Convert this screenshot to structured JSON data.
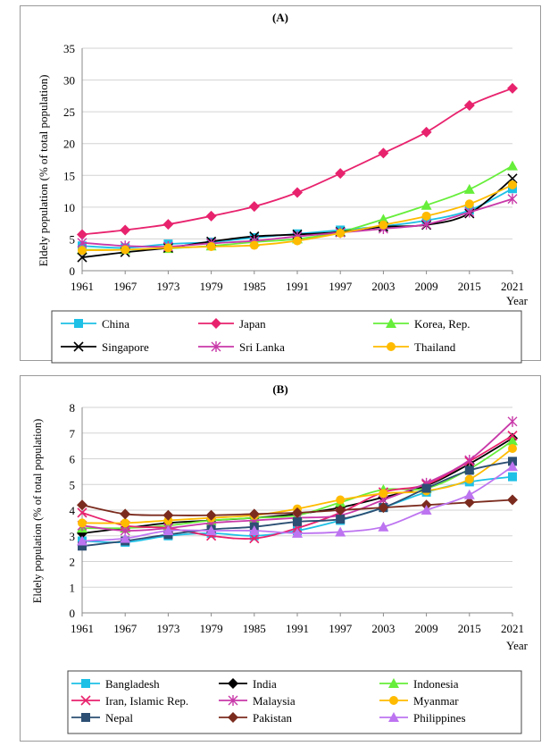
{
  "chart_data": [
    {
      "type": "line",
      "title": "(A)",
      "xlabel": "Year",
      "ylabel": "Eldely population (% of total population)",
      "categories": [
        "1961",
        "1967",
        "1973",
        "1979",
        "1985",
        "1991",
        "1997",
        "2003",
        "2009",
        "2015",
        "2021"
      ],
      "ylim": [
        0,
        35
      ],
      "yticks": [
        0,
        5,
        10,
        15,
        20,
        25,
        30,
        35
      ],
      "grid": true,
      "legend_position": "bottom",
      "series": [
        {
          "name": "China",
          "color": "#1ec0e6",
          "marker": "square",
          "values": [
            3.9,
            3.6,
            4.2,
            4.5,
            5.2,
            5.8,
            6.4,
            7.0,
            7.9,
            9.5,
            12.9
          ]
        },
        {
          "name": "Japan",
          "color": "#e8236e",
          "marker": "diamond",
          "values": [
            5.7,
            6.4,
            7.3,
            8.6,
            10.1,
            12.3,
            15.3,
            18.5,
            21.8,
            26.0,
            28.7
          ]
        },
        {
          "name": "Korea, Rep.",
          "color": "#66ee3a",
          "marker": "triangle",
          "values": [
            3.3,
            3.3,
            3.5,
            3.9,
            4.5,
            5.0,
            6.1,
            8.1,
            10.3,
            12.8,
            16.5
          ]
        },
        {
          "name": "Singapore",
          "color": "#000000",
          "marker": "x",
          "values": [
            2.1,
            2.9,
            3.6,
            4.6,
            5.4,
            5.7,
            6.1,
            6.9,
            7.2,
            9.0,
            14.5
          ]
        },
        {
          "name": "Sri Lanka",
          "color": "#c838a8",
          "marker": "star",
          "values": [
            4.4,
            3.9,
            3.8,
            4.3,
            4.7,
            5.4,
            6.0,
            6.6,
            7.3,
            9.2,
            11.3
          ]
        },
        {
          "name": "Thailand",
          "color": "#ffbb00",
          "marker": "circle",
          "values": [
            3.2,
            3.3,
            3.6,
            3.8,
            4.0,
            4.7,
            5.9,
            7.2,
            8.6,
            10.5,
            13.5
          ]
        }
      ]
    },
    {
      "type": "line",
      "title": "(B)",
      "xlabel": "Year",
      "ylabel": "Eldely population (% of total population)",
      "categories": [
        "1961",
        "1967",
        "1973",
        "1979",
        "1985",
        "1991",
        "1997",
        "2003",
        "2009",
        "2015",
        "2021"
      ],
      "ylim": [
        0,
        8
      ],
      "yticks": [
        0,
        1,
        2,
        3,
        4,
        5,
        6,
        7,
        8
      ],
      "grid": true,
      "legend_position": "bottom",
      "series": [
        {
          "name": "Bangladesh",
          "color": "#1ec0e6",
          "marker": "square",
          "values": [
            2.8,
            2.75,
            3.0,
            3.1,
            3.0,
            3.2,
            3.6,
            4.1,
            4.7,
            5.1,
            5.3
          ]
        },
        {
          "name": "India",
          "color": "#000000",
          "marker": "diamond",
          "values": [
            3.1,
            3.3,
            3.5,
            3.6,
            3.7,
            3.85,
            4.1,
            4.5,
            4.95,
            5.8,
            6.8
          ]
        },
        {
          "name": "Indonesia",
          "color": "#66ee3a",
          "marker": "triangle",
          "values": [
            3.3,
            3.3,
            3.4,
            3.6,
            3.7,
            3.8,
            4.3,
            4.8,
            4.85,
            5.6,
            6.7
          ]
        },
        {
          "name": "Iran, Islamic Rep.",
          "color": "#e8236e",
          "marker": "x",
          "values": [
            3.9,
            3.4,
            3.3,
            3.0,
            2.9,
            3.3,
            3.9,
            4.7,
            5.0,
            5.9,
            6.9
          ]
        },
        {
          "name": "Malaysia",
          "color": "#c838a8",
          "marker": "star",
          "values": [
            3.4,
            3.2,
            3.3,
            3.5,
            3.6,
            3.7,
            3.8,
            4.4,
            5.05,
            5.95,
            7.45
          ]
        },
        {
          "name": "Myanmar",
          "color": "#ffbb00",
          "marker": "circle",
          "values": [
            3.5,
            3.5,
            3.6,
            3.7,
            3.8,
            4.05,
            4.4,
            4.65,
            4.75,
            5.2,
            6.4
          ]
        },
        {
          "name": "Nepal",
          "color": "#2c4f73",
          "marker": "square",
          "values": [
            2.6,
            2.8,
            3.05,
            3.25,
            3.35,
            3.55,
            3.65,
            4.1,
            4.85,
            5.55,
            5.9
          ]
        },
        {
          "name": "Pakistan",
          "color": "#7b2b1e",
          "marker": "diamond",
          "values": [
            4.2,
            3.85,
            3.8,
            3.8,
            3.85,
            3.9,
            4.0,
            4.1,
            4.2,
            4.3,
            4.4
          ]
        },
        {
          "name": "Philippines",
          "color": "#bd74f0",
          "marker": "triangle",
          "values": [
            2.8,
            2.9,
            3.2,
            3.2,
            3.2,
            3.1,
            3.15,
            3.35,
            4.0,
            4.6,
            5.7
          ]
        }
      ]
    }
  ]
}
